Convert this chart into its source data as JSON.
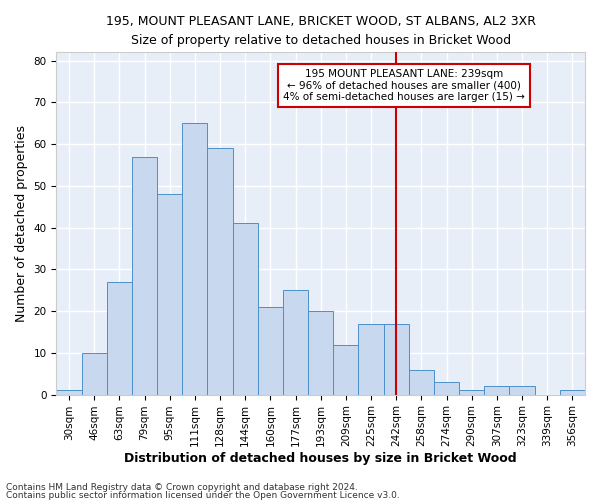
{
  "title_line1": "195, MOUNT PLEASANT LANE, BRICKET WOOD, ST ALBANS, AL2 3XR",
  "title_line2": "Size of property relative to detached houses in Bricket Wood",
  "xlabel": "Distribution of detached houses by size in Bricket Wood",
  "ylabel": "Number of detached properties",
  "categories": [
    "30sqm",
    "46sqm",
    "63sqm",
    "79sqm",
    "95sqm",
    "111sqm",
    "128sqm",
    "144sqm",
    "160sqm",
    "177sqm",
    "193sqm",
    "209sqm",
    "225sqm",
    "242sqm",
    "258sqm",
    "274sqm",
    "290sqm",
    "307sqm",
    "323sqm",
    "339sqm",
    "356sqm"
  ],
  "values": [
    1,
    10,
    27,
    57,
    48,
    65,
    59,
    41,
    21,
    25,
    20,
    12,
    17,
    17,
    6,
    3,
    1,
    2,
    2,
    0,
    1
  ],
  "bar_color": "#c8d8ee",
  "bar_edgecolor": "#4a90c8",
  "vline_x": 13,
  "vline_color": "#cc0000",
  "annotation_line1": "195 MOUNT PLEASANT LANE: 239sqm",
  "annotation_line2": "← 96% of detached houses are smaller (400)",
  "annotation_line3": "4% of semi-detached houses are larger (15) →",
  "ylim": [
    0,
    82
  ],
  "yticks": [
    0,
    10,
    20,
    30,
    40,
    50,
    60,
    70,
    80
  ],
  "footer_line1": "Contains HM Land Registry data © Crown copyright and database right 2024.",
  "footer_line2": "Contains public sector information licensed under the Open Government Licence v3.0.",
  "bg_color": "#ffffff",
  "plot_bg_color": "#e8eef8",
  "grid_color": "#ffffff",
  "title_fontsize": 9,
  "subtitle_fontsize": 8.5,
  "axis_label_fontsize": 9,
  "tick_fontsize": 7.5,
  "footer_fontsize": 6.5,
  "annotation_fontsize": 7.5
}
